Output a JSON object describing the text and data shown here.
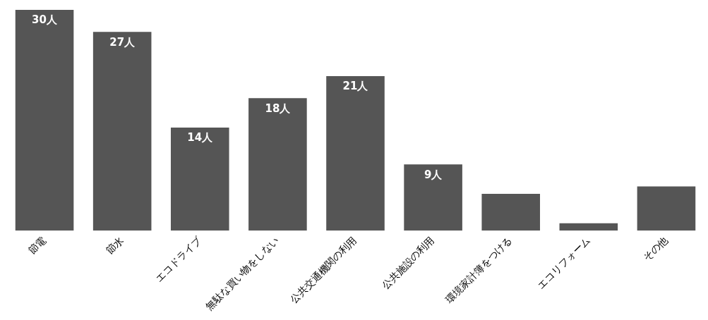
{
  "chart_data": {
    "type": "bar",
    "categories": [
      "節電",
      "節水",
      "エコドライブ",
      "無駄な買い物をしない",
      "公共交通機関の利用",
      "公共施設の利用",
      "環境家計簿をつける",
      "エコリフォーム",
      "その他"
    ],
    "values": [
      30,
      27,
      14,
      18,
      21,
      9,
      5,
      1,
      6
    ],
    "value_labels": [
      "30人",
      "27人",
      "14人",
      "18人",
      "21人",
      "9人",
      null,
      null,
      null
    ],
    "color": "#555555",
    "grid": false,
    "legend": false
  }
}
